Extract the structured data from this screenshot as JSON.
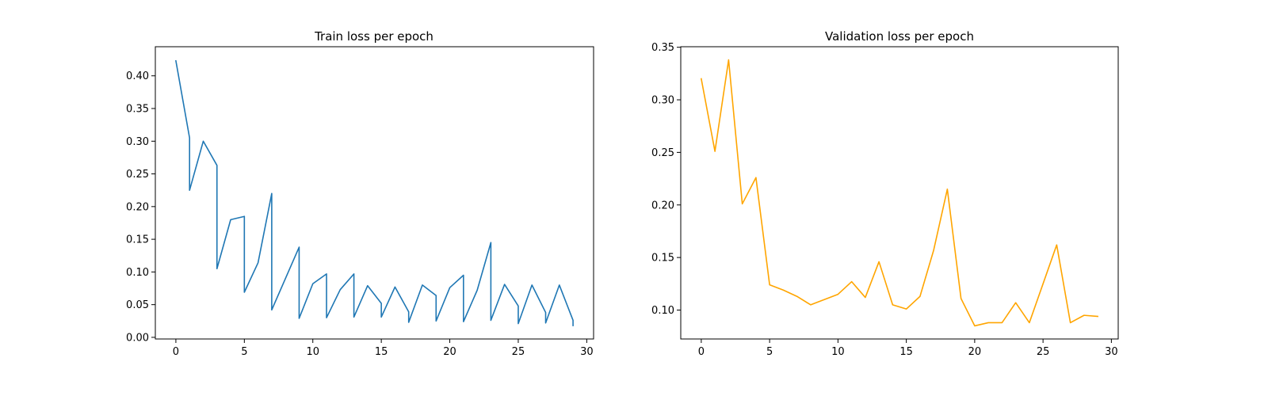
{
  "chart_data": [
    {
      "type": "line",
      "title": "Train loss per epoch",
      "xlabel": "",
      "ylabel": "",
      "xlim": [
        -1.5,
        30.5
      ],
      "ylim": [
        -0.0025,
        0.4445
      ],
      "xticks": [
        0,
        5,
        10,
        15,
        20,
        25,
        30
      ],
      "xtick_labels": [
        "0",
        "5",
        "10",
        "15",
        "20",
        "25",
        "30"
      ],
      "yticks": [
        0.0,
        0.05,
        0.1,
        0.15,
        0.2,
        0.25,
        0.3,
        0.35,
        0.4
      ],
      "ytick_labels": [
        "0.00",
        "0.05",
        "0.10",
        "0.15",
        "0.20",
        "0.25",
        "0.30",
        "0.35",
        "0.40"
      ],
      "grid": false,
      "series": [
        {
          "color": "#1f77b4",
          "x": [
            0,
            1,
            1,
            2,
            3,
            3,
            4,
            5,
            5,
            6,
            7,
            7,
            8,
            9,
            9,
            10,
            11,
            11,
            12,
            13,
            13,
            14,
            15,
            15,
            16,
            17,
            17,
            18,
            19,
            19,
            20,
            21,
            21,
            22,
            23,
            23,
            24,
            25,
            25,
            26,
            27,
            27,
            28,
            29,
            29
          ],
          "y": [
            0.423,
            0.305,
            0.225,
            0.3,
            0.263,
            0.105,
            0.18,
            0.185,
            0.069,
            0.114,
            0.22,
            0.042,
            0.09,
            0.138,
            0.029,
            0.082,
            0.097,
            0.03,
            0.073,
            0.097,
            0.031,
            0.079,
            0.052,
            0.031,
            0.077,
            0.039,
            0.023,
            0.08,
            0.064,
            0.025,
            0.076,
            0.095,
            0.024,
            0.072,
            0.145,
            0.026,
            0.081,
            0.048,
            0.021,
            0.08,
            0.038,
            0.022,
            0.08,
            0.026,
            0.018
          ]
        }
      ]
    },
    {
      "type": "line",
      "title": "Validation loss per epoch",
      "xlabel": "",
      "ylabel": "",
      "xlim": [
        -1.5,
        30.5
      ],
      "ylim": [
        0.0725,
        0.3505
      ],
      "xticks": [
        0,
        5,
        10,
        15,
        20,
        25,
        30
      ],
      "xtick_labels": [
        "0",
        "5",
        "10",
        "15",
        "20",
        "25",
        "30"
      ],
      "yticks": [
        0.1,
        0.15,
        0.2,
        0.25,
        0.3,
        0.35
      ],
      "ytick_labels": [
        "0.10",
        "0.15",
        "0.20",
        "0.25",
        "0.30",
        "0.35"
      ],
      "grid": false,
      "series": [
        {
          "color": "#ffa500",
          "x": [
            0,
            1,
            2,
            3,
            4,
            5,
            6,
            7,
            8,
            9,
            10,
            11,
            12,
            13,
            14,
            15,
            16,
            17,
            18,
            19,
            20,
            21,
            22,
            23,
            24,
            25,
            26,
            27,
            28,
            29
          ],
          "y": [
            0.32,
            0.251,
            0.338,
            0.201,
            0.226,
            0.124,
            0.119,
            0.113,
            0.105,
            0.11,
            0.115,
            0.127,
            0.112,
            0.146,
            0.105,
            0.101,
            0.113,
            0.157,
            0.215,
            0.111,
            0.085,
            0.088,
            0.088,
            0.107,
            0.088,
            0.125,
            0.162,
            0.088,
            0.095,
            0.094
          ]
        }
      ]
    }
  ]
}
